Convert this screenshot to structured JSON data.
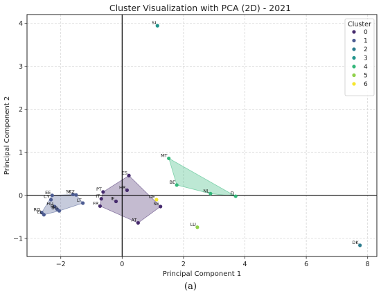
{
  "caption": "(a)",
  "chart_data": {
    "type": "scatter",
    "title": "Cluster Visualization with PCA (2D) - 2021",
    "xlabel": "Principal Component 1",
    "ylabel": "Principal Component 2",
    "xlim": [
      -3.1,
      8.3
    ],
    "ylim": [
      -1.42,
      4.2
    ],
    "xticks": [
      -2,
      0,
      2,
      4,
      6,
      8
    ],
    "yticks": [
      -1,
      0,
      1,
      2,
      3,
      4
    ],
    "grid": true,
    "zero_lines": true,
    "legend": {
      "title": "Cluster",
      "position": "top-right",
      "entries": [
        "0",
        "1",
        "2",
        "3",
        "4",
        "5",
        "6"
      ]
    },
    "colors": [
      "#462a6d",
      "#4d5c92",
      "#2d7c8e",
      "#21948b",
      "#33b77a",
      "#8fd14a",
      "#f6e62b"
    ],
    "hull_clusters": [
      0,
      1,
      4
    ],
    "points": [
      {
        "label": "SI",
        "x": 1.15,
        "y": 3.94,
        "cluster": 3
      },
      {
        "label": "MT",
        "x": 1.52,
        "y": 0.86,
        "cluster": 4
      },
      {
        "label": "BE",
        "x": 1.78,
        "y": 0.24,
        "cluster": 4
      },
      {
        "label": "NL",
        "x": 2.88,
        "y": 0.04,
        "cluster": 4
      },
      {
        "label": "FI",
        "x": 3.7,
        "y": -0.02,
        "cluster": 4
      },
      {
        "label": "LU",
        "x": 2.45,
        "y": -0.74,
        "cluster": 5
      },
      {
        "label": "DK",
        "x": 7.75,
        "y": -1.16,
        "cluster": 2
      },
      {
        "label": "DE",
        "x": 1.12,
        "y": -0.1,
        "cluster": 6
      },
      {
        "label": "ES",
        "x": 0.22,
        "y": 0.46,
        "cluster": 0
      },
      {
        "label": "PT",
        "x": -0.62,
        "y": 0.08,
        "cluster": 0
      },
      {
        "label": "HR",
        "x": 0.16,
        "y": 0.12,
        "cluster": 0
      },
      {
        "label": "IT",
        "x": -0.68,
        "y": -0.08,
        "cluster": 0
      },
      {
        "label": "IE",
        "x": -0.2,
        "y": -0.14,
        "cluster": 0
      },
      {
        "label": "FR",
        "x": -0.72,
        "y": -0.25,
        "cluster": 0
      },
      {
        "label": "SE",
        "x": 1.25,
        "y": -0.26,
        "cluster": 0
      },
      {
        "label": "AT",
        "x": 0.52,
        "y": -0.64,
        "cluster": 0
      },
      {
        "label": "EE",
        "x": -2.28,
        "y": 0.0,
        "cluster": 1
      },
      {
        "label": "SK",
        "x": -1.6,
        "y": 0.02,
        "cluster": 1
      },
      {
        "label": "CZ",
        "x": -1.5,
        "y": 0.01,
        "cluster": 1
      },
      {
        "label": "CY",
        "x": -2.32,
        "y": -0.1,
        "cluster": 1
      },
      {
        "label": "LT",
        "x": -1.28,
        "y": -0.18,
        "cluster": 1
      },
      {
        "label": "HU",
        "x": -2.2,
        "y": -0.26,
        "cluster": 1
      },
      {
        "label": "PL",
        "x": -2.12,
        "y": -0.32,
        "cluster": 1
      },
      {
        "label": "BG",
        "x": -2.05,
        "y": -0.36,
        "cluster": 1
      },
      {
        "label": "RO",
        "x": -2.62,
        "y": -0.4,
        "cluster": 1
      },
      {
        "label": "EL",
        "x": -2.55,
        "y": -0.45,
        "cluster": 1
      }
    ]
  }
}
